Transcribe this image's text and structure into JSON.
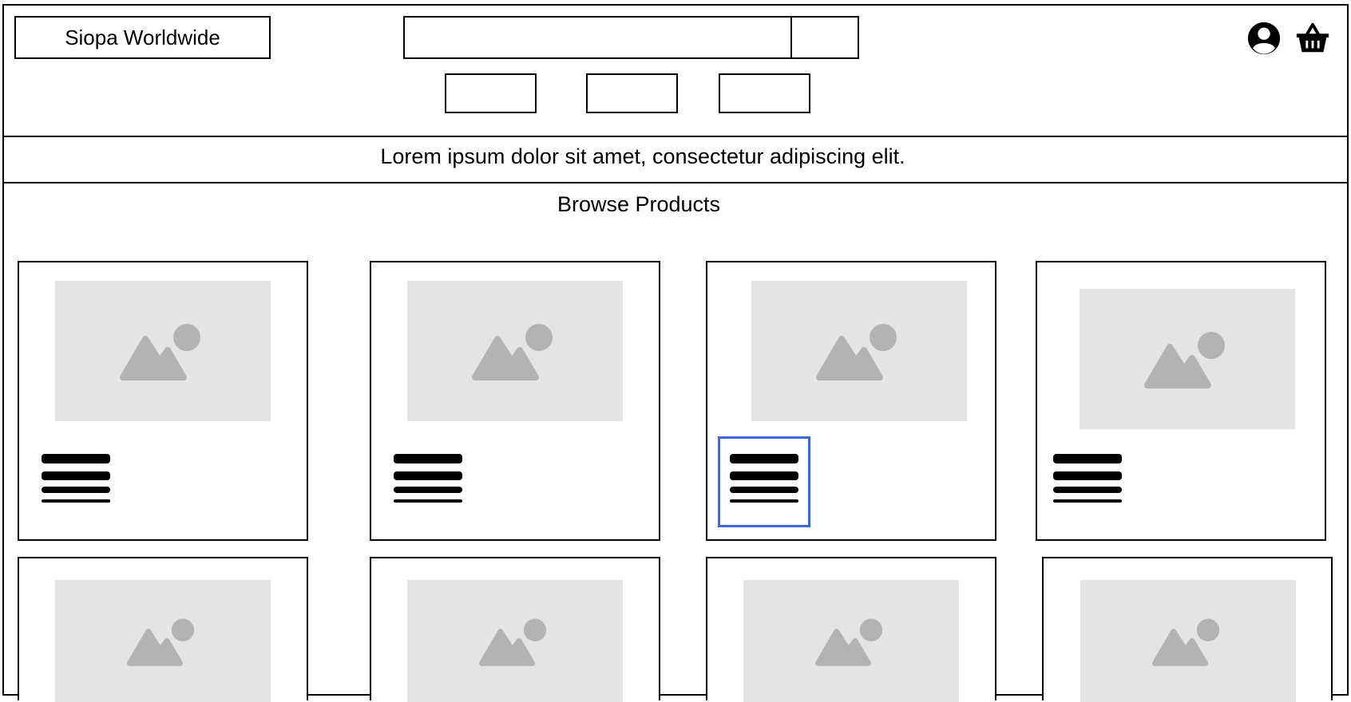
{
  "header": {
    "logo_text": "Siopa Worldwide",
    "search": {
      "value": "",
      "placeholder": ""
    },
    "search_button_label": "",
    "nav_buttons": [
      "",
      "",
      ""
    ],
    "icons": {
      "account": "account-circle-icon",
      "cart": "shopping-basket-icon"
    }
  },
  "banner": {
    "text": "Lorem ipsum dolor sit amet, consectetur adipiscing elit."
  },
  "products": {
    "title": "Browse Products",
    "image_icon": "image-placeholder-icon",
    "text_icon": "text-lines-icon"
  },
  "colors": {
    "border": "#000000",
    "image_bg": "#e4e4e4",
    "image_glyph": "#b3b3b3",
    "selection": "#3d68d8"
  }
}
